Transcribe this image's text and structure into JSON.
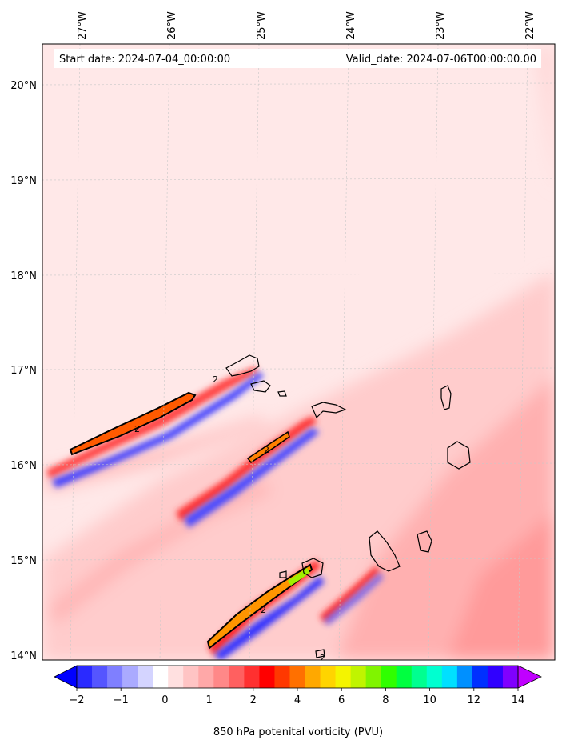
{
  "header": {
    "start_label": "Start date: 2024-07-04_00:00:00",
    "valid_label": "Valid_date: 2024-07-06T00:00:00.00"
  },
  "map": {
    "lon_ticks": [
      "27°W",
      "26°W",
      "25°W",
      "24°W",
      "23°W",
      "22°W"
    ],
    "lat_ticks": [
      "20°N",
      "19°N",
      "18°N",
      "17°N",
      "16°N",
      "15°N",
      "14°N"
    ],
    "contour_label": "2"
  },
  "colorbar": {
    "title": "850 hPa potenital vorticity (PVU)",
    "tick_labels": [
      "−2",
      "−1",
      "0",
      "1",
      "2",
      "4",
      "6",
      "8",
      "10",
      "12",
      "14"
    ],
    "colors": [
      "#0000ff",
      "#2a2aff",
      "#5555ff",
      "#7f7fff",
      "#aaaaff",
      "#d4d4ff",
      "#ffffff",
      "#ffe0e0",
      "#ffc4c4",
      "#ffa8a8",
      "#ff8888",
      "#ff6060",
      "#ff3030",
      "#ff0000",
      "#ff3800",
      "#ff7000",
      "#ffa800",
      "#ffd400",
      "#f4f400",
      "#c0f400",
      "#80f400",
      "#30ff00",
      "#00ff40",
      "#00ff90",
      "#00ffd0",
      "#00e0ff",
      "#0090ff",
      "#0030ff",
      "#3000ff",
      "#8000ff",
      "#c000ff"
    ],
    "extend": "both"
  },
  "palette": {
    "background_field": "#ffe8e8",
    "light_red": "#ffcccc",
    "mid_red": "#ffa8a8",
    "strong_red": "#ff2020",
    "blue": "#3030ff",
    "orange": "#ff6a00",
    "coastline": "#000000"
  }
}
